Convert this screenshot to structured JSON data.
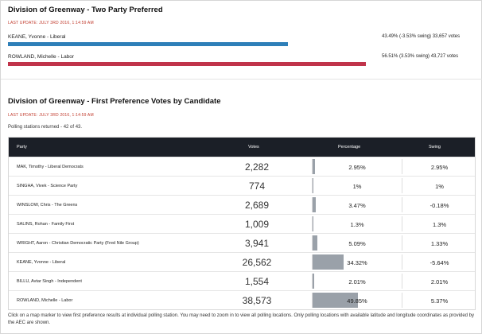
{
  "two_party": {
    "title": "Division of Greenway - Two Party Preferred",
    "last_update": "LAST UPDATE: JULY 3RD 2016, 1:14:59 AM",
    "candidates": [
      {
        "name": "KEANE, Yvonne - Liberal",
        "pct": "43.49%",
        "swing": "(-3.53% swing)",
        "votes": "33,657 votes",
        "share": 0.782,
        "color": "#2e7fb8"
      },
      {
        "name": "ROWLAND, Michelle - Labor",
        "pct": "56.51%",
        "swing": "(3.53% swing)",
        "votes": "43,727 votes",
        "share": 1.0,
        "color": "#c0334a"
      }
    ]
  },
  "first_pref": {
    "title": "Division of Greenway - First Preference Votes by Candidate",
    "last_update": "LAST UPDATE: JULY 3RD 2016, 1:14:59 AM",
    "stations": "Polling stations returned - 42 of 43.",
    "headers": {
      "party": "Party",
      "votes": "Votes",
      "percentage": "Percentage",
      "swing": "Swing"
    },
    "rows": [
      {
        "party": "MAK, Timothy - Liberal Democrats",
        "votes": "2,282",
        "pct": "2.95%",
        "swing": "2.95%",
        "pct_value": 2.95
      },
      {
        "party": "SINGHA, Vivek - Science Party",
        "votes": "774",
        "pct": "1%",
        "swing": "1%",
        "pct_value": 1.0
      },
      {
        "party": "WINSLOW, Chris - The Greens",
        "votes": "2,689",
        "pct": "3.47%",
        "swing": "-0.18%",
        "pct_value": 3.47
      },
      {
        "party": "SALINS, Rohan - Family First",
        "votes": "1,009",
        "pct": "1.3%",
        "swing": "1.3%",
        "pct_value": 1.3
      },
      {
        "party": "WRIGHT, Aaron - Christian Democratic Party (Fred Nile Group)",
        "votes": "3,941",
        "pct": "5.09%",
        "swing": "1.33%",
        "pct_value": 5.09
      },
      {
        "party": "KEANE, Yvonne - Liberal",
        "votes": "26,562",
        "pct": "34.32%",
        "swing": "-5.64%",
        "pct_value": 34.32
      },
      {
        "party": "BILLU, Avtar Singh - Independent",
        "votes": "1,554",
        "pct": "2.01%",
        "swing": "2.01%",
        "pct_value": 2.01
      },
      {
        "party": "ROWLAND, Michelle - Labor",
        "votes": "38,573",
        "pct": "49.85%",
        "swing": "5.37%",
        "pct_value": 49.85
      }
    ]
  },
  "footnote": "Click on a map marker to view first preference results at individual polling station. You may need to zoom in to view all polling locations. Only polling locations with available latitude and longitude coordinates as provided by the AEC are shown."
}
